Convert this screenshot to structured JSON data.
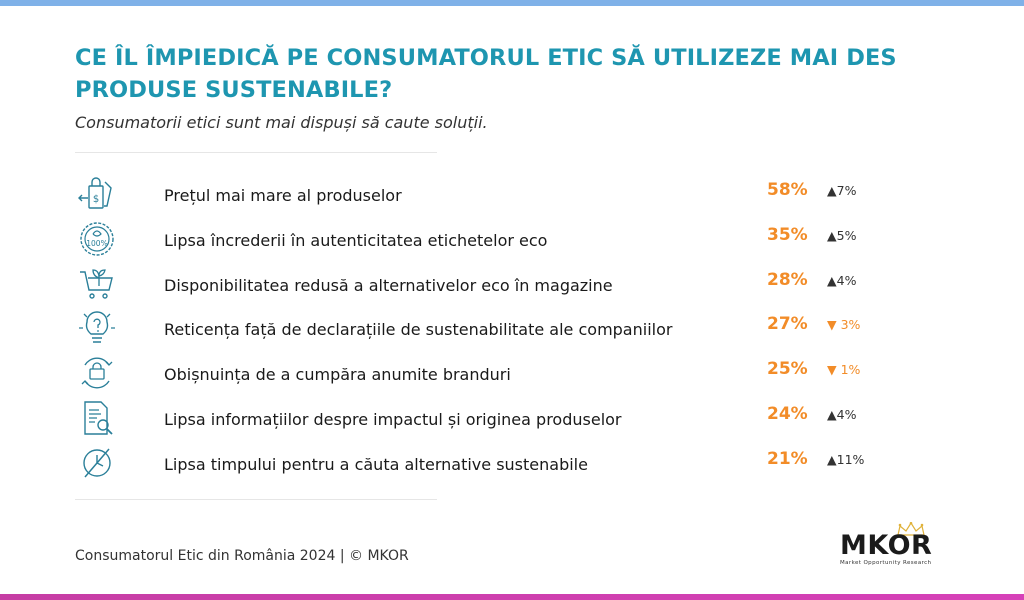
{
  "title": "CE ÎL ÎMPIEDICĂ PE CONSUMATORUL ETIC SĂ UTILIZEZE MAI DES PRODUSE SUSTENABILE?",
  "subtitle": "Consumatorii etici sunt mai dispuși să caute soluții.",
  "chart_data": {
    "type": "table",
    "columns": [
      "",
      "",
      "",
      ""
    ],
    "rows": [
      {
        "icon": "price-tag-bag-icon",
        "label": "Prețul mai mare al produselor",
        "value": "58%",
        "change": "▲7%",
        "trend": "up"
      },
      {
        "icon": "eco-seal-100-icon",
        "label": "Lipsa încrederii în autenticitatea etichetelor eco",
        "value": "35%",
        "change": "▲5%",
        "trend": "up"
      },
      {
        "icon": "eco-cart-icon",
        "label": "Disponibilitatea redusă a alternativelor eco în magazine",
        "value": "28%",
        "change": "▲4%",
        "trend": "up"
      },
      {
        "icon": "bulb-question-icon",
        "label": "Reticența față de declarațiile de sustenabilitate ale companiilor",
        "value": "27%",
        "change": "▼ 3%",
        "trend": "down"
      },
      {
        "icon": "shopping-habit-icon",
        "label": "Obișnuința de a cumpăra anumite branduri",
        "value": "25%",
        "change": "▼ 1%",
        "trend": "down"
      },
      {
        "icon": "document-search-icon",
        "label": "Lipsa informațiilor despre impactul și originea produselor",
        "value": "24%",
        "change": "▲4%",
        "trend": "up"
      },
      {
        "icon": "no-time-clock-icon",
        "label": "Lipsa timpului pentru a căuta alternative sustenabile",
        "value": "21%",
        "change": "▲11%",
        "trend": "up"
      }
    ]
  },
  "footer": "Consumatorul Etic din România 2024 | © MKOR",
  "logo": {
    "name": "MKOR",
    "tagline": "Market Opportunity Research"
  },
  "colors": {
    "title": "#1e96b0",
    "value": "#f28c28",
    "down": "#f28c28",
    "icon": "#2a7f99",
    "top_bar": "#7fb1e8",
    "bottom_bar": "#c63da4"
  }
}
